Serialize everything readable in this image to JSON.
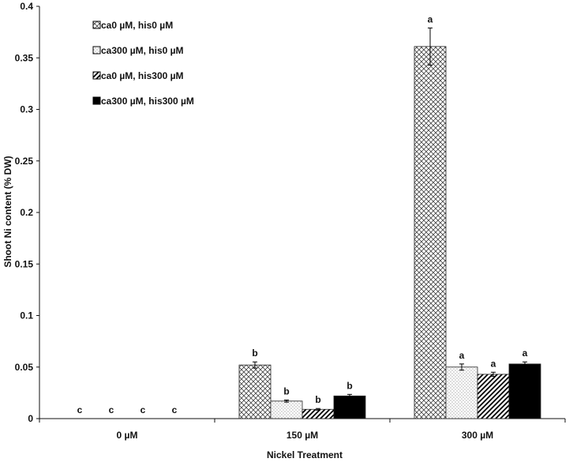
{
  "chart_data": {
    "type": "bar",
    "title": "",
    "xlabel": "Nickel Treatment",
    "ylabel": "Shoot Ni content (% DW)",
    "ylim": [
      0,
      0.4
    ],
    "yticks": [
      "0",
      "0.05",
      "0.1",
      "0.15",
      "0.2",
      "0.25",
      "0.3",
      "0.35",
      "0.4"
    ],
    "grid": false,
    "legend_position": "top-left",
    "categories": [
      "0 µM",
      "150 µM",
      "300 µM"
    ],
    "series": [
      {
        "name": "ca0 µM, his0 µM",
        "pattern": "crosshatch",
        "values": [
          0,
          0.052,
          0.361
        ],
        "errors": [
          0,
          0.003,
          0.018
        ],
        "letters": [
          "c",
          "b",
          "a"
        ]
      },
      {
        "name": "ca300 µM, his0 µM",
        "pattern": "dots",
        "values": [
          0,
          0.017,
          0.05
        ],
        "errors": [
          0,
          0.001,
          0.003
        ],
        "letters": [
          "c",
          "b",
          "a"
        ]
      },
      {
        "name": "ca0 µM, his300 µM",
        "pattern": "diagonal",
        "values": [
          0,
          0.009,
          0.043
        ],
        "errors": [
          0,
          0.0008,
          0.002
        ],
        "letters": [
          "c",
          "b",
          "a"
        ]
      },
      {
        "name": "ca300 µM, his300 µM",
        "pattern": "solid",
        "values": [
          0,
          0.022,
          0.053
        ],
        "errors": [
          0,
          0.0015,
          0.002
        ],
        "letters": [
          "c",
          "b",
          "a"
        ]
      }
    ],
    "colors": {
      "axis": "#111111",
      "bar_outline": "#222222",
      "solid": "#000000"
    }
  }
}
